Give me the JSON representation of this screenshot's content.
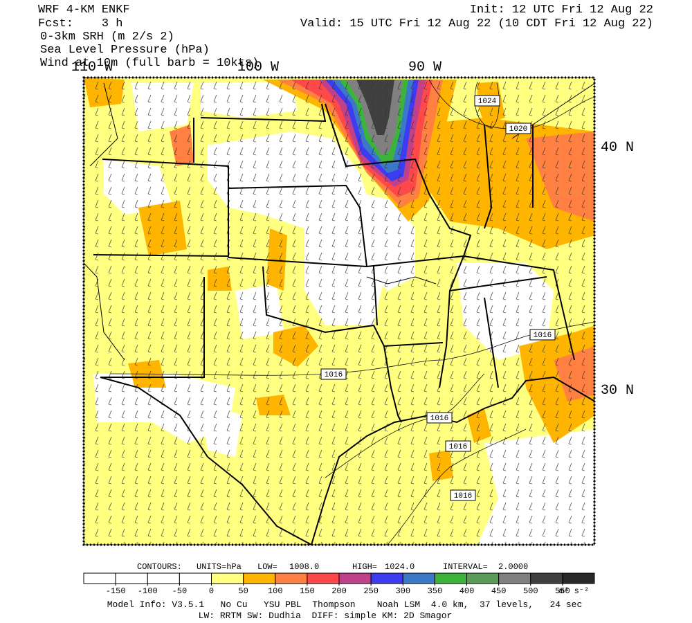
{
  "header": {
    "left": [
      "WRF 4-KM ENKF",
      "Fcst:    3 h",
      "0-3km SRH (m 2/s 2)",
      "Sea Level Pressure (hPa)",
      "Wind at 10m (full barb = 10kts)"
    ],
    "init": "Init: 12 UTC Fri 12 Aug 22",
    "valid": "Valid: 15 UTC Fri 12 Aug 22 (10 CDT Fri 12 Aug 22)"
  },
  "map": {
    "longitude_labels": [
      "110 W",
      "100 W",
      "90 W"
    ],
    "latitude_labels": [
      "40 N",
      "30 N"
    ],
    "contour_labels": [
      "1024",
      "1020",
      "1016",
      "1016",
      "1016",
      "1016",
      "1016"
    ]
  },
  "contours": {
    "title": "CONTOURS:",
    "units": "UNITS=hPa",
    "low_label": "LOW=",
    "low": "1008.0",
    "high_label": "HIGH=",
    "high": "1024.0",
    "interval_label": "INTERVAL=",
    "interval": "2.0000"
  },
  "colorbar": {
    "colors": [
      "#ffffff",
      "#ffffff",
      "#ffffff",
      "#ffffff",
      "#ffff80",
      "#ffb400",
      "#ff8040",
      "#ff4848",
      "#c0408a",
      "#3c3cf0",
      "#3c78c8",
      "#3cb43c",
      "#5a9a5a",
      "#808080",
      "#404040",
      "#282828"
    ],
    "levels": [
      -150,
      -100,
      -50,
      0,
      50,
      100,
      150,
      200,
      250,
      300,
      350,
      400,
      450,
      500,
      550
    ],
    "units": "m² s⁻²"
  },
  "footer": [
    "Model Info: V3.5.1   No Cu   YSU PBL  Thompson    Noah LSM  4.0 km,  37 levels,   24 sec",
    "LW: RRTM SW: Dudhia  DIFF: simple KM: 2D Smagor"
  ]
}
